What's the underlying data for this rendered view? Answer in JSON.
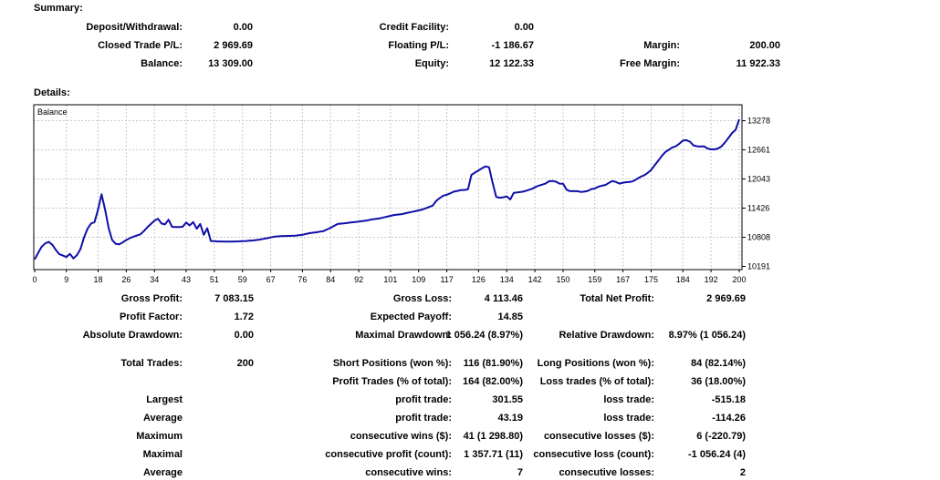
{
  "summary": {
    "heading": "Summary:",
    "rows": [
      [
        {
          "l": "Deposit/Withdrawal:",
          "v": "0.00"
        },
        {
          "l": "Credit Facility:",
          "v": "0.00"
        },
        {
          "l": "",
          "v": ""
        }
      ],
      [
        {
          "l": "Closed Trade P/L:",
          "v": "2 969.69"
        },
        {
          "l": "Floating P/L:",
          "v": "-1 186.67"
        },
        {
          "l": "Margin:",
          "v": "200.00"
        }
      ],
      [
        {
          "l": "Balance:",
          "v": "13 309.00"
        },
        {
          "l": "Equity:",
          "v": "12 122.33"
        },
        {
          "l": "Free Margin:",
          "v": "11 922.33"
        }
      ]
    ]
  },
  "details": {
    "heading": "Details:",
    "rows": [
      [
        {
          "l": "Gross Profit:",
          "v": "7 083.15"
        },
        {
          "l": "Gross Loss:",
          "v": "4 113.46"
        },
        {
          "l": "Total Net Profit:",
          "v": "2 969.69"
        }
      ],
      [
        {
          "l": "Profit Factor:",
          "v": "1.72"
        },
        {
          "l": "Expected Payoff:",
          "v": "14.85"
        },
        {
          "l": "",
          "v": ""
        }
      ],
      [
        {
          "l": "Absolute Drawdown:",
          "v": "0.00"
        },
        {
          "l": "Maximal Drawdown:",
          "v": "1 056.24 (8.97%)"
        },
        {
          "l": "Relative Drawdown:",
          "v": "8.97% (1 056.24)"
        }
      ],
      [
        {
          "l": "Total Trades:",
          "v": "200"
        },
        {
          "l": "Short Positions (won %):",
          "v": "116 (81.90%)"
        },
        {
          "l": "Long Positions (won %):",
          "v": "84 (82.14%)"
        }
      ],
      [
        {
          "l": "",
          "v": ""
        },
        {
          "l": "Profit Trades (% of total):",
          "v": "164 (82.00%)"
        },
        {
          "l": "Loss trades (% of total):",
          "v": "36 (18.00%)"
        }
      ],
      [
        {
          "l": "Largest",
          "v": ""
        },
        {
          "l": "profit trade:",
          "v": "301.55"
        },
        {
          "l": "loss trade:",
          "v": "-515.18"
        }
      ],
      [
        {
          "l": "Average",
          "v": ""
        },
        {
          "l": "profit trade:",
          "v": "43.19"
        },
        {
          "l": "loss trade:",
          "v": "-114.26"
        }
      ],
      [
        {
          "l": "Maximum",
          "v": ""
        },
        {
          "l": "consecutive wins ($):",
          "v": "41 (1 298.80)"
        },
        {
          "l": "consecutive losses ($):",
          "v": "6 (-220.79)"
        }
      ],
      [
        {
          "l": "Maximal",
          "v": ""
        },
        {
          "l": "consecutive profit (count):",
          "v": "1 357.71 (11)"
        },
        {
          "l": "consecutive loss (count):",
          "v": "-1 056.24 (4)"
        }
      ],
      [
        {
          "l": "Average",
          "v": ""
        },
        {
          "l": "consecutive wins:",
          "v": "7"
        },
        {
          "l": "consecutive losses:",
          "v": "2"
        }
      ]
    ]
  },
  "chart_data": {
    "type": "line",
    "title": "Balance",
    "xlabel": "",
    "ylabel": "",
    "x_ticks": [
      0,
      9,
      18,
      26,
      34,
      43,
      51,
      59,
      67,
      76,
      84,
      92,
      101,
      109,
      117,
      126,
      134,
      142,
      150,
      159,
      167,
      175,
      184,
      192,
      200
    ],
    "y_ticks": [
      10191,
      10808,
      11426,
      12043,
      12661,
      13278
    ],
    "xlim": [
      0,
      200
    ],
    "ylim": [
      10191,
      13400
    ],
    "grid": "dashed",
    "legend_position": "top-left-inside",
    "colors": {
      "line": "#0f0fa8",
      "grid": "#c8c8c8",
      "border": "#000000"
    },
    "series": [
      {
        "name": "Balance",
        "x_start": 0,
        "x_step": 1,
        "values": [
          10339,
          10480,
          10610,
          10680,
          10712,
          10650,
          10540,
          10450,
          10420,
          10390,
          10455,
          10360,
          10430,
          10560,
          10800,
          10990,
          11100,
          11130,
          11400,
          11720,
          11390,
          11000,
          10750,
          10670,
          10660,
          10700,
          10750,
          10790,
          10820,
          10845,
          10870,
          10940,
          11020,
          11090,
          11160,
          11200,
          11100,
          11080,
          11180,
          11030,
          11025,
          11025,
          11030,
          11120,
          11060,
          11130,
          10990,
          11090,
          10860,
          11000,
          10730,
          10725,
          10720,
          10720,
          10718,
          10715,
          10718,
          10720,
          10722,
          10725,
          10730,
          10735,
          10740,
          10750,
          10760,
          10775,
          10790,
          10805,
          10820,
          10828,
          10832,
          10835,
          10838,
          10840,
          10842,
          10850,
          10860,
          10878,
          10895,
          10905,
          10915,
          10928,
          10940,
          10975,
          11010,
          11050,
          11090,
          11098,
          11105,
          11115,
          11125,
          11132,
          11140,
          11150,
          11160,
          11175,
          11190,
          11200,
          11210,
          11228,
          11245,
          11262,
          11280,
          11288,
          11295,
          11312,
          11330,
          11345,
          11360,
          11378,
          11395,
          11422,
          11450,
          11480,
          11580,
          11640,
          11690,
          11710,
          11740,
          11775,
          11790,
          11810,
          11810,
          11825,
          12130,
          12180,
          12225,
          12270,
          12310,
          12290,
          11960,
          11665,
          11645,
          11655,
          11675,
          11610,
          11750,
          11760,
          11770,
          11780,
          11805,
          11830,
          11865,
          11900,
          11922,
          11945,
          11995,
          12000,
          11985,
          11945,
          11940,
          11815,
          11785,
          11785,
          11785,
          11770,
          11775,
          11790,
          11830,
          11840,
          11880,
          11900,
          11915,
          11960,
          12000,
          11980,
          11945,
          11965,
          11975,
          11980,
          12000,
          12045,
          12090,
          12120,
          12170,
          12235,
          12335,
          12430,
          12530,
          12610,
          12660,
          12710,
          12735,
          12790,
          12855,
          12865,
          12835,
          12755,
          12735,
          12730,
          12735,
          12690,
          12670,
          12670,
          12690,
          12735,
          12820,
          12920,
          13020,
          13085,
          13309
        ]
      }
    ]
  }
}
